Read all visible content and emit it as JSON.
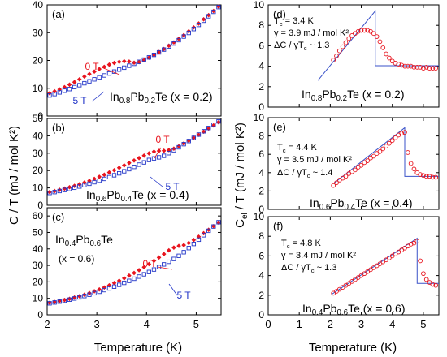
{
  "colors": {
    "red": "#e8141e",
    "blue": "#2336c8",
    "fit": "#3a52c8",
    "axis": "#000000"
  },
  "labels": {
    "left_ylabel": "C / T (mJ / mol K²)",
    "right_ylabel_main": "C",
    "right_ylabel_sub": "el",
    "right_ylabel_rest": " / T (mJ / mol K²)",
    "xlabel": "Temperature (K)"
  },
  "chart_data": [
    {
      "id": "a",
      "type": "scatter",
      "panel_label": "(a)",
      "xlim": [
        2,
        5.5
      ],
      "ylim": [
        0,
        40
      ],
      "xticks": [
        2,
        3,
        4,
        5
      ],
      "yticks": [
        0,
        10,
        20,
        30,
        40
      ],
      "show_xticklabels": false,
      "annotations": [
        {
          "text": "0 T",
          "color": "red"
        },
        {
          "text": "5 T",
          "color": "blue"
        },
        {
          "text": "In",
          "sub1": "0.8",
          "mid": "Pb",
          "sub2": "0.2",
          "end": "Te (x = 0.2)",
          "color": "black"
        }
      ],
      "series": [
        {
          "name": "0 T",
          "marker": "filled-diamond",
          "color": "red",
          "x": [
            2.05,
            2.15,
            2.25,
            2.35,
            2.45,
            2.55,
            2.65,
            2.75,
            2.85,
            2.95,
            3.05,
            3.15,
            3.25,
            3.35,
            3.45,
            3.55,
            3.65,
            3.75,
            3.85,
            3.95,
            4.05,
            4.15,
            4.25,
            4.35,
            4.45,
            4.55,
            4.65,
            4.75,
            4.85,
            4.95,
            5.05,
            5.15,
            5.25,
            5.35,
            5.45
          ],
          "y": [
            8.2,
            8.9,
            9.6,
            10.4,
            11.3,
            12.2,
            13.2,
            14.2,
            15.1,
            16.0,
            16.9,
            17.7,
            18.5,
            19.1,
            19.5,
            19.7,
            19.6,
            19.2,
            19.4,
            20.1,
            21.0,
            22.0,
            23.0,
            24.1,
            25.3,
            26.5,
            27.8,
            29.1,
            30.5,
            31.9,
            33.3,
            34.8,
            36.3,
            37.8,
            39.4
          ]
        },
        {
          "name": "5 T",
          "marker": "open-square",
          "color": "blue",
          "x": [
            2.05,
            2.15,
            2.25,
            2.35,
            2.45,
            2.55,
            2.65,
            2.75,
            2.85,
            2.95,
            3.05,
            3.15,
            3.25,
            3.35,
            3.45,
            3.55,
            3.65,
            3.75,
            3.85,
            3.95,
            4.05,
            4.15,
            4.25,
            4.35,
            4.45,
            4.55,
            4.65,
            4.75,
            4.85,
            4.95,
            5.05,
            5.15,
            5.25,
            5.35,
            5.45
          ],
          "y": [
            7.4,
            7.9,
            8.5,
            9.1,
            9.7,
            10.4,
            11.1,
            11.8,
            12.5,
            13.2,
            13.9,
            14.6,
            15.3,
            16.0,
            16.7,
            17.4,
            18.1,
            18.8,
            19.5,
            20.3,
            21.1,
            22.0,
            22.9,
            23.9,
            25.0,
            26.1,
            27.3,
            28.6,
            29.9,
            31.3,
            32.8,
            34.3,
            35.9,
            37.5,
            39.2
          ]
        }
      ]
    },
    {
      "id": "b",
      "type": "scatter",
      "panel_label": "(b)",
      "xlim": [
        2,
        5.5
      ],
      "ylim": [
        0,
        50
      ],
      "xticks": [
        2,
        3,
        4,
        5
      ],
      "yticks": [
        0,
        10,
        20,
        30,
        40,
        50
      ],
      "show_xticklabels": false,
      "annotations": [
        {
          "text": "0 T",
          "color": "red"
        },
        {
          "text": "5 T",
          "color": "blue"
        },
        {
          "text": "In",
          "sub1": "0.6",
          "mid": "Pb",
          "sub2": "0.4",
          "end": "Te (x = 0.4)",
          "color": "black"
        }
      ],
      "series": [
        {
          "name": "0 T",
          "marker": "filled-diamond",
          "color": "red",
          "x": [
            2.05,
            2.15,
            2.25,
            2.35,
            2.45,
            2.55,
            2.65,
            2.75,
            2.85,
            2.95,
            3.05,
            3.15,
            3.25,
            3.35,
            3.45,
            3.55,
            3.65,
            3.75,
            3.85,
            3.95,
            4.05,
            4.15,
            4.25,
            4.35,
            4.45,
            4.55,
            4.65,
            4.75,
            4.85,
            4.95,
            5.05,
            5.15,
            5.25,
            5.35,
            5.45
          ],
          "y": [
            7.6,
            8.2,
            8.9,
            9.6,
            10.4,
            11.2,
            12.1,
            13.1,
            14.1,
            15.2,
            16.4,
            17.6,
            18.9,
            20.2,
            21.6,
            23.0,
            24.4,
            25.8,
            27.2,
            28.6,
            29.9,
            30.9,
            31.3,
            31.4,
            31.8,
            32.6,
            34.0,
            35.6,
            37.2,
            38.9,
            40.6,
            42.4,
            44.2,
            46.0,
            47.8
          ]
        },
        {
          "name": "5 T",
          "marker": "open-square",
          "color": "blue",
          "x": [
            2.05,
            2.15,
            2.25,
            2.35,
            2.45,
            2.55,
            2.65,
            2.75,
            2.85,
            2.95,
            3.05,
            3.15,
            3.25,
            3.35,
            3.45,
            3.55,
            3.65,
            3.75,
            3.85,
            3.95,
            4.05,
            4.15,
            4.25,
            4.35,
            4.45,
            4.55,
            4.65,
            4.75,
            4.85,
            4.95,
            5.05,
            5.15,
            5.25,
            5.35,
            5.45
          ],
          "y": [
            7.1,
            7.6,
            8.2,
            8.8,
            9.4,
            10.1,
            10.8,
            11.6,
            12.4,
            13.3,
            14.2,
            15.2,
            16.2,
            17.3,
            18.4,
            19.6,
            20.8,
            22.1,
            23.4,
            24.7,
            26.1,
            27.0,
            27.6,
            28.5,
            30.0,
            31.7,
            33.4,
            35.2,
            37.0,
            38.8,
            40.7,
            42.6,
            44.5,
            46.4,
            48.3
          ]
        }
      ]
    },
    {
      "id": "c",
      "type": "scatter",
      "panel_label": "(c)",
      "xlim": [
        2,
        5.5
      ],
      "ylim": [
        0,
        65
      ],
      "xticks": [
        2,
        3,
        4,
        5
      ],
      "yticks": [
        0,
        10,
        20,
        30,
        40,
        50,
        60
      ],
      "show_xticklabels": true,
      "annotations": [
        {
          "text": "0 T",
          "color": "red"
        },
        {
          "text": "5 T",
          "color": "blue"
        },
        {
          "text": "In",
          "sub1": "0.4",
          "mid": "Pb",
          "sub2": "0.6",
          "end": "Te",
          "color": "black"
        },
        {
          "text": "(x = 0.6)",
          "color": "black"
        }
      ],
      "series": [
        {
          "name": "0 T",
          "marker": "filled-diamond",
          "color": "red",
          "x": [
            2.05,
            2.15,
            2.25,
            2.35,
            2.45,
            2.55,
            2.65,
            2.75,
            2.85,
            2.95,
            3.05,
            3.15,
            3.25,
            3.35,
            3.45,
            3.55,
            3.65,
            3.75,
            3.85,
            3.95,
            4.05,
            4.15,
            4.25,
            4.35,
            4.45,
            4.55,
            4.65,
            4.75,
            4.85,
            4.95,
            5.05,
            5.15,
            5.25,
            5.35,
            5.45
          ],
          "y": [
            7.3,
            7.8,
            8.4,
            9.0,
            9.7,
            10.5,
            11.3,
            12.2,
            13.2,
            14.3,
            15.4,
            16.6,
            17.9,
            19.3,
            20.7,
            22.2,
            23.8,
            25.4,
            27.1,
            28.9,
            30.8,
            32.8,
            34.8,
            36.9,
            39.1,
            40.8,
            41.8,
            42.3,
            43.6,
            45.4,
            47.4,
            49.5,
            51.6,
            53.8,
            56.0
          ]
        },
        {
          "name": "5 T",
          "marker": "open-square",
          "color": "blue",
          "x": [
            2.05,
            2.15,
            2.25,
            2.35,
            2.45,
            2.55,
            2.65,
            2.75,
            2.85,
            2.95,
            3.05,
            3.15,
            3.25,
            3.35,
            3.45,
            3.55,
            3.65,
            3.75,
            3.85,
            3.95,
            4.05,
            4.15,
            4.25,
            4.35,
            4.45,
            4.55,
            4.65,
            4.75,
            4.85,
            4.95,
            5.05,
            5.15,
            5.25,
            5.35,
            5.45
          ],
          "y": [
            7.0,
            7.5,
            8.0,
            8.6,
            9.2,
            9.9,
            10.6,
            11.4,
            12.2,
            13.1,
            14.0,
            15.0,
            16.0,
            17.1,
            18.2,
            19.4,
            20.6,
            21.9,
            23.2,
            24.6,
            26.0,
            27.5,
            29.0,
            30.6,
            32.2,
            33.9,
            35.8,
            38.0,
            40.5,
            43.0,
            45.6,
            48.3,
            51.0,
            53.6,
            56.2
          ]
        }
      ]
    },
    {
      "id": "d",
      "type": "scatter",
      "panel_label": "(d)",
      "xlim": [
        0,
        5.5
      ],
      "ylim": [
        0,
        10
      ],
      "xticks": [
        0,
        1,
        2,
        3,
        4,
        5
      ],
      "yticks": [
        0,
        2,
        4,
        6,
        8,
        10
      ],
      "show_xticklabels": false,
      "annotations": [
        {
          "text": "T",
          "sub1": "c",
          "end": " = 3.4 K",
          "color": "black"
        },
        {
          "text": "γ = 3.9 mJ / mol K²",
          "color": "black"
        },
        {
          "text": "ΔC / γT",
          "sub1": "c",
          "end": " ~ 1.3",
          "color": "black"
        },
        {
          "text": "In",
          "sub1": "0.8",
          "mid": "Pb",
          "sub2": "0.2",
          "end": "Te (x = 0.2)",
          "color": "black"
        }
      ],
      "fit_line": {
        "x": [
          1.6,
          3.45,
          3.45,
          5.5
        ],
        "y": [
          2.6,
          9.4,
          4.05,
          4.05
        ]
      },
      "series": [
        {
          "name": "",
          "marker": "open-circle",
          "color": "red",
          "x": [
            2.1,
            2.2,
            2.3,
            2.4,
            2.5,
            2.6,
            2.7,
            2.8,
            2.9,
            3.0,
            3.1,
            3.2,
            3.3,
            3.4,
            3.5,
            3.6,
            3.7,
            3.8,
            3.9,
            4.0,
            4.1,
            4.2,
            4.3,
            4.4,
            4.5,
            4.6,
            4.7,
            4.8,
            4.9,
            5.0,
            5.1,
            5.2,
            5.3,
            5.4
          ],
          "y": [
            4.6,
            5.0,
            5.5,
            5.9,
            6.3,
            6.7,
            7.0,
            7.2,
            7.4,
            7.5,
            7.5,
            7.5,
            7.4,
            7.2,
            6.9,
            6.4,
            5.8,
            5.2,
            4.8,
            4.5,
            4.3,
            4.2,
            4.1,
            4.0,
            4.0,
            4.0,
            3.9,
            3.9,
            3.9,
            3.8,
            3.9,
            3.8,
            3.8,
            3.8
          ]
        }
      ]
    },
    {
      "id": "e",
      "type": "scatter",
      "panel_label": "(e)",
      "xlim": [
        0,
        5.5
      ],
      "ylim": [
        0,
        10
      ],
      "xticks": [
        0,
        1,
        2,
        3,
        4,
        5
      ],
      "yticks": [
        0,
        2,
        4,
        6,
        8,
        10
      ],
      "show_xticklabels": false,
      "annotations": [
        {
          "text": "T",
          "sub1": "c",
          "end": " = 4.4 K",
          "color": "black"
        },
        {
          "text": "γ = 3.5 mJ / mol K²",
          "color": "black"
        },
        {
          "text": "ΔC / γT",
          "sub1": "c",
          "end": " ~ 1.4",
          "color": "black"
        },
        {
          "text": "In",
          "sub1": "0.6",
          "mid": "Pb",
          "sub2": "0.4",
          "end": "Te (x = 0.4)",
          "color": "black"
        }
      ],
      "fit_line": {
        "x": [
          2.1,
          4.4,
          4.4,
          5.5
        ],
        "y": [
          2.8,
          8.9,
          3.6,
          3.6
        ]
      },
      "series": [
        {
          "name": "",
          "marker": "open-circle",
          "color": "red",
          "x": [
            2.1,
            2.2,
            2.3,
            2.4,
            2.5,
            2.6,
            2.7,
            2.8,
            2.9,
            3.0,
            3.1,
            3.2,
            3.3,
            3.4,
            3.5,
            3.6,
            3.7,
            3.8,
            3.9,
            4.0,
            4.1,
            4.2,
            4.3,
            4.4,
            4.5,
            4.6,
            4.7,
            4.8,
            4.9,
            5.0,
            5.1,
            5.2,
            5.3,
            5.4
          ],
          "y": [
            2.6,
            2.9,
            3.2,
            3.4,
            3.6,
            3.9,
            4.1,
            4.3,
            4.6,
            4.8,
            5.1,
            5.3,
            5.6,
            5.8,
            6.1,
            6.3,
            6.6,
            6.9,
            7.2,
            7.5,
            7.8,
            8.1,
            8.3,
            8.4,
            6.2,
            5.0,
            4.4,
            4.0,
            3.8,
            3.7,
            3.6,
            3.6,
            3.5,
            3.5
          ]
        }
      ]
    },
    {
      "id": "f",
      "type": "scatter",
      "panel_label": "(f)",
      "xlim": [
        0,
        5.5
      ],
      "ylim": [
        0,
        10
      ],
      "xticks": [
        0,
        1,
        2,
        3,
        4,
        5
      ],
      "yticks": [
        0,
        2,
        4,
        6,
        8,
        10
      ],
      "show_xticklabels": true,
      "annotations": [
        {
          "text": "T",
          "sub1": "c",
          "end": " = 4.8 K",
          "color": "black"
        },
        {
          "text": "γ = 3.4 mJ / mol K²",
          "color": "black"
        },
        {
          "text": "ΔC / γT",
          "sub1": "c",
          "end": " ~ 1.3",
          "color": "black"
        },
        {
          "text": "In",
          "sub1": "0.4",
          "mid": "Pb",
          "sub2": "0.6",
          "end": "Te (x = 0.6)",
          "color": "black"
        }
      ],
      "fit_line": {
        "x": [
          2.05,
          4.8,
          4.8,
          5.5
        ],
        "y": [
          2.1,
          7.8,
          3.2,
          3.2
        ]
      },
      "series": [
        {
          "name": "",
          "marker": "open-circle",
          "color": "red",
          "x": [
            2.1,
            2.2,
            2.3,
            2.4,
            2.5,
            2.6,
            2.7,
            2.8,
            2.9,
            3.0,
            3.1,
            3.2,
            3.3,
            3.4,
            3.5,
            3.6,
            3.7,
            3.8,
            3.9,
            4.0,
            4.1,
            4.2,
            4.3,
            4.4,
            4.5,
            4.6,
            4.7,
            4.8,
            4.9,
            5.0,
            5.1,
            5.2,
            5.3,
            5.4
          ],
          "y": [
            2.2,
            2.4,
            2.6,
            2.8,
            3.0,
            3.2,
            3.4,
            3.6,
            3.8,
            4.0,
            4.2,
            4.4,
            4.6,
            4.8,
            5.0,
            5.2,
            5.4,
            5.6,
            5.8,
            6.0,
            6.2,
            6.4,
            6.6,
            6.8,
            7.0,
            7.2,
            7.3,
            7.5,
            5.5,
            4.2,
            3.6,
            3.3,
            3.1,
            3.0
          ]
        }
      ]
    }
  ]
}
